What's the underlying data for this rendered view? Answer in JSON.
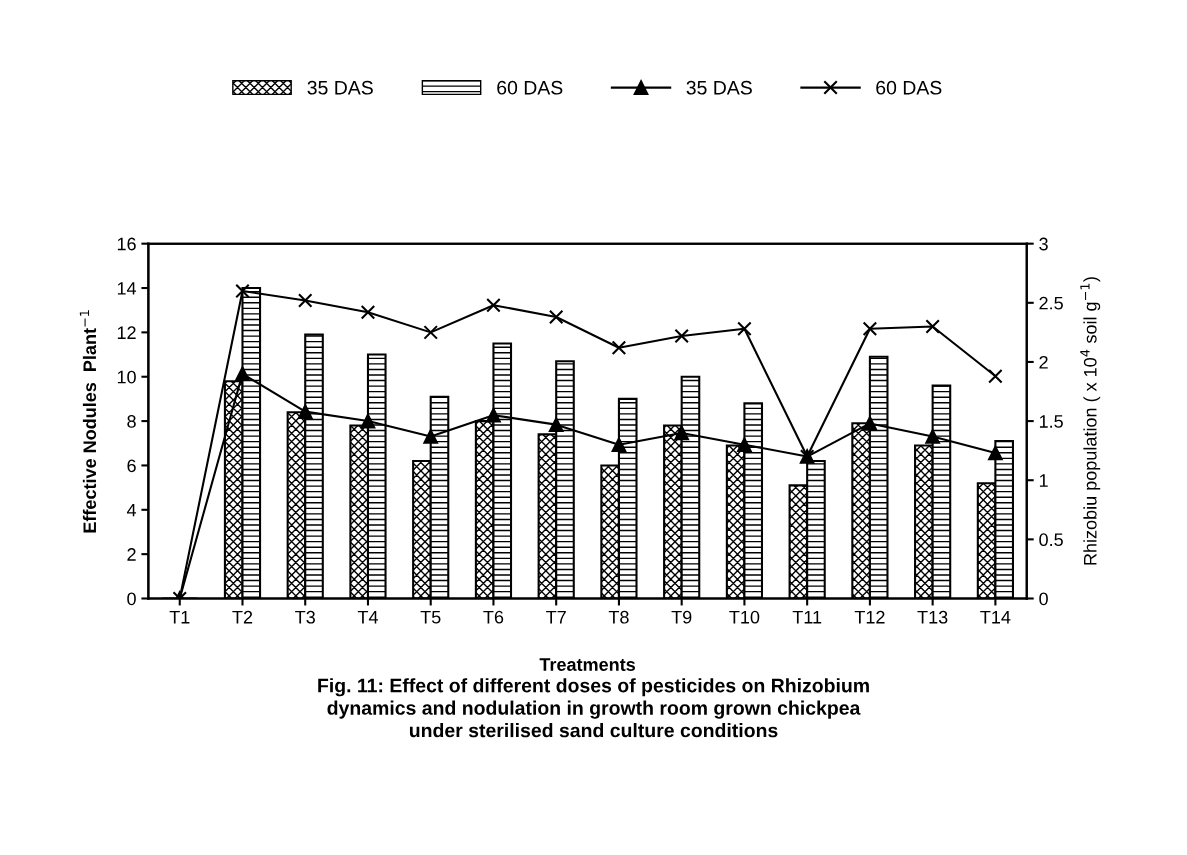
{
  "chart_data": {
    "type": "bar",
    "title": "Fig. 11: Effect of different doses of pesticides on Rhizobium\ndynamics and nodulation in growth room grown chickpea\nunder sterilised sand culture conditions",
    "xlabel": "Treatments",
    "ylabel": "Effective Nodules  Plant$^{−1}$",
    "y2label": "Rhizobiu population ( x 10$^{4}$ soil g$^{−1}$)",
    "categories": [
      "T1",
      "T2",
      "T3",
      "T4",
      "T5",
      "T6",
      "T7",
      "T8",
      "T9",
      "T10",
      "T11",
      "T12",
      "T13",
      "T14"
    ],
    "series": [
      {
        "name": "35 DAS",
        "color": "#000000",
        "values": [
          0,
          9.8,
          8.4,
          7.8,
          6.2,
          8.0,
          7.4,
          6.0,
          7.8,
          6.9,
          5.1,
          7.9,
          6.9,
          5.2
        ]
      },
      {
        "name": "60 DAS",
        "color": "#000000",
        "values": [
          0,
          14.0,
          11.9,
          11.0,
          9.1,
          11.5,
          10.7,
          9.0,
          10.0,
          8.8,
          6.2,
          10.9,
          9.6,
          7.1
        ]
      },
      {
        "name": "35 DAS",
        "type": "line",
        "axis": "y2",
        "marker": "triangle",
        "color": "#000000",
        "values": [
          0,
          1.9,
          1.58,
          1.5,
          1.37,
          1.55,
          1.47,
          1.3,
          1.4,
          1.3,
          1.2,
          1.48,
          1.37,
          1.23
        ]
      },
      {
        "name": "60 DAS",
        "type": "line",
        "axis": "y2",
        "marker": "cross",
        "color": "#000000",
        "values": [
          0,
          2.6,
          2.52,
          2.42,
          2.25,
          2.48,
          2.38,
          2.12,
          2.22,
          2.28,
          1.2,
          2.28,
          2.3,
          1.88
        ]
      }
    ],
    "ylim": [
      0,
      16
    ],
    "yticks": [
      0,
      2,
      4,
      6,
      8,
      10,
      12,
      14,
      16
    ],
    "y2lim": [
      0,
      3
    ],
    "y2ticks": [
      0,
      0.5,
      1,
      1.5,
      2,
      2.5,
      3
    ],
    "line_style": "solid",
    "grid": false,
    "legend": "top"
  }
}
